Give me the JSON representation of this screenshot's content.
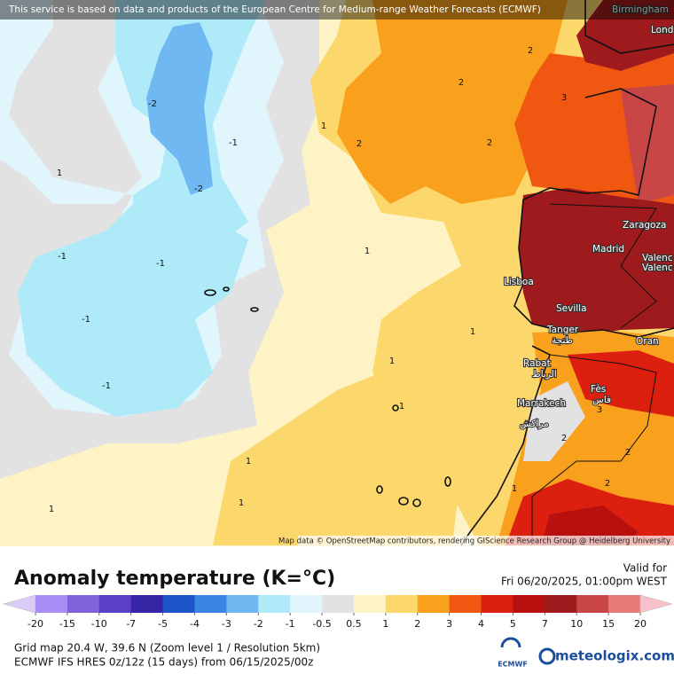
{
  "banner": "This service is based on data and products of the European Centre for Medium-range Weather Forecasts (ECMWF)",
  "attribution": "Map data © OpenStreetMap contributors, rendering GIScience Research Group @ Heidelberg University",
  "cities": [
    "Birmingham",
    "Lond",
    "Zaragoza",
    "Madrid",
    "Valenc",
    "Valenc",
    "Lisboa",
    "Sevilla",
    "Tanger",
    "طنجة",
    "Oran",
    "Rabat",
    "الرباط",
    "Fès",
    "فاس",
    "Marrakech",
    "مراكش"
  ],
  "contour_labels": [
    "-2",
    "-1",
    "-2",
    "1",
    "2",
    "2",
    "2",
    "3",
    "2",
    "1",
    "-1",
    "-1",
    "-1",
    "-1",
    "1",
    "1",
    "1",
    "1",
    "1",
    "1",
    "1",
    "2",
    "2",
    "2",
    "1",
    "3"
  ],
  "legend": {
    "title": "Anomaly temperature (K=°C)",
    "valid_label": "Valid for",
    "valid_time": "Fri 06/20/2025, 01:00pm WEST",
    "ticks": [
      -20,
      -15,
      -10,
      -7,
      -5,
      -4,
      -3,
      -2,
      -1,
      -0.5,
      0.5,
      1,
      2,
      3,
      4,
      5,
      7,
      10,
      15,
      20
    ],
    "colors": [
      "#d9ccf5",
      "#a98ef5",
      "#7f62dc",
      "#5b3fc4",
      "#3524a3",
      "#1d55c8",
      "#3a84e2",
      "#6fb8f2",
      "#aeeaf8",
      "#e0f6fc",
      "#e2e2e2",
      "#fdf3c4",
      "#fcd86c",
      "#f9a11c",
      "#f05812",
      "#dc1f0e",
      "#b8100f",
      "#9e1a1c",
      "#c94646",
      "#e87a7a",
      "#f8c0ca"
    ]
  },
  "footer": {
    "grid": "Grid map 20.4 W, 39.6 N (Zoom level 1 / Resolution 5km)",
    "model": "ECMWF IFS HRES 0z/12z (15 days) from  06/15/2025/00z",
    "ecmwf": "ECMWF",
    "brand": "meteologix.com"
  }
}
